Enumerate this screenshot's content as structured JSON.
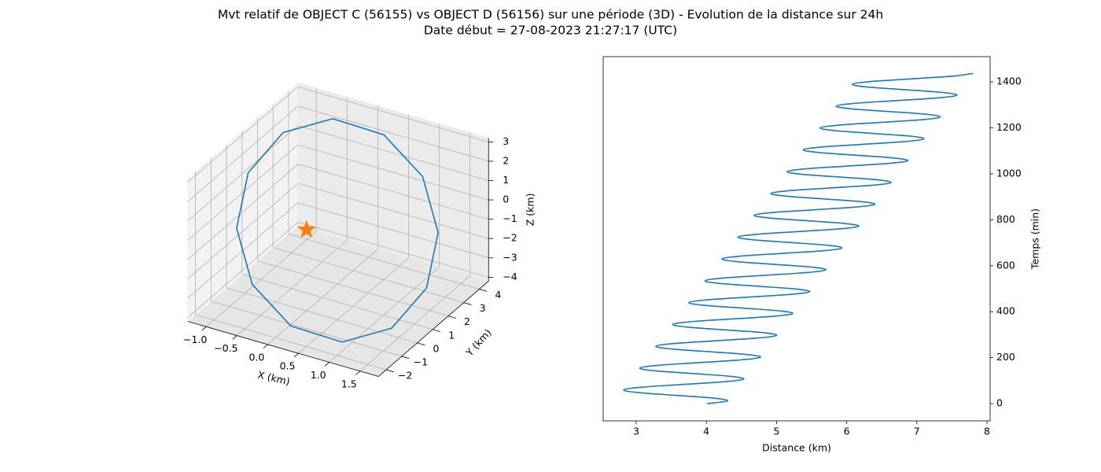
{
  "figure": {
    "title": "Mvt relatif de OBJECT C (56155) vs OBJECT D (56156) sur une période (3D) - Evolution de la distance sur 24h",
    "subtitle": "Date début = 27-08-2023 21:27:17 (UTC)"
  },
  "chart_data": [
    {
      "type": "line3d",
      "xlabel": "X (km)",
      "ylabel": "Y (km)",
      "zlabel": "Z (km)",
      "xlim": [
        -1.3,
        1.8
      ],
      "ylim": [
        -2.5,
        4.6
      ],
      "zlim": [
        -4.2,
        3.2
      ],
      "xticks": [
        {
          "value": -1,
          "label": "−1.0"
        },
        {
          "value": -0.5,
          "label": "−0.5"
        },
        {
          "value": 0,
          "label": "0.0"
        },
        0.5,
        {
          "value": 1,
          "label": "1.0"
        },
        1.5
      ],
      "yticks": [
        {
          "value": -2,
          "label": "−2"
        },
        {
          "value": -1,
          "label": "−1"
        },
        0,
        1,
        2,
        3,
        4
      ],
      "zticks": [
        {
          "value": -4,
          "label": "−4"
        },
        {
          "value": -3,
          "label": "−3"
        },
        {
          "value": -2,
          "label": "−2"
        },
        {
          "value": -1,
          "label": "−1"
        },
        0,
        1,
        2,
        3
      ],
      "grid": true,
      "series": [
        {
          "color": "#1f77b4",
          "x": [
            1.7,
            1.51,
            0.98,
            0.25,
            -0.48,
            -1.01,
            -1.2,
            -1.01,
            -0.48,
            0.25,
            0.98,
            1.51,
            1.7
          ],
          "y": [
            1,
            2.5,
            3.6,
            4,
            3.6,
            2.5,
            1,
            -0.5,
            -1.6,
            -2,
            -1.6,
            -0.5,
            1
          ],
          "z": [
            -2.15,
            -0.5,
            1.15,
            2.36,
            2.8,
            2.36,
            1.15,
            -0.5,
            -2.15,
            -3.36,
            -3.8,
            -3.36,
            -2.15
          ]
        }
      ],
      "marker": {
        "shape": "star",
        "color": "#ff7f0e",
        "x": 0,
        "y": 0,
        "z": 0
      }
    },
    {
      "type": "line",
      "xlabel": "Distance (km)",
      "ylabel": "Temps (min)",
      "xlim": [
        2.53,
        8.045
      ],
      "ylim": [
        -75,
        1510
      ],
      "xticks": [
        3,
        4,
        5,
        6,
        7,
        8
      ],
      "yticks": [
        0,
        200,
        400,
        600,
        800,
        1000,
        1200,
        1400
      ],
      "y_axis_side": "right",
      "smooth": true,
      "series": [
        {
          "color": "#1f77b4",
          "x": [
            4.01,
            4.3,
            4.12,
            3.59,
            3.05,
            2.82,
            3.06,
            3.64,
            4.25,
            4.53,
            4.35,
            3.83,
            3.28,
            3.05,
            3.29,
            3.87,
            4.48,
            4.77,
            4.58,
            4.06,
            3.51,
            3.28,
            3.52,
            4.11,
            4.71,
            5.0,
            4.82,
            4.29,
            3.75,
            3.52,
            3.76,
            4.34,
            4.95,
            5.23,
            5.05,
            4.53,
            3.98,
            3.75,
            3.99,
            4.57,
            5.18,
            5.47,
            5.28,
            4.76,
            4.21,
            3.98,
            4.22,
            4.81,
            5.41,
            5.7,
            5.52,
            4.99,
            4.45,
            4.22,
            4.46,
            5.04,
            5.65,
            5.93,
            5.75,
            5.23,
            4.68,
            4.45,
            4.69,
            5.27,
            5.88,
            6.17,
            5.98,
            5.46,
            4.91,
            4.68,
            4.92,
            5.51,
            6.11,
            6.4,
            6.22,
            5.69,
            5.15,
            4.92,
            5.16,
            5.74,
            6.35,
            6.63,
            6.45,
            5.93,
            5.38,
            5.15,
            5.39,
            5.97,
            6.58,
            6.87,
            6.68,
            6.16,
            5.61,
            5.38,
            5.62,
            6.21,
            6.81,
            7.1,
            6.92,
            6.39,
            5.85,
            5.62,
            5.86,
            6.44,
            7.05,
            7.33,
            7.15,
            6.63,
            6.08,
            5.85,
            6.09,
            6.67,
            7.28,
            7.57,
            7.38,
            6.86,
            6.31,
            6.08,
            6.32,
            6.91,
            7.51,
            7.8
          ],
          "values": [
            0,
            11.875,
            23.75,
            35.625,
            47.5,
            59.375,
            71.25,
            83.125,
            95,
            106.875,
            118.75,
            130.625,
            142.5,
            154.375,
            166.25,
            178.125,
            190,
            201.875,
            213.75,
            225.625,
            237.5,
            249.375,
            261.25,
            273.125,
            285,
            296.875,
            308.75,
            320.625,
            332.5,
            344.375,
            356.25,
            368.125,
            380,
            391.875,
            403.75,
            415.625,
            427.5,
            439.375,
            451.25,
            463.125,
            475,
            486.875,
            498.75,
            510.625,
            522.5,
            534.375,
            546.25,
            558.125,
            570,
            581.875,
            593.75,
            605.625,
            617.5,
            629.375,
            641.25,
            653.125,
            665,
            676.875,
            688.75,
            700.625,
            712.5,
            724.375,
            736.25,
            748.125,
            760,
            771.875,
            783.75,
            795.625,
            807.5,
            819.375,
            831.25,
            843.125,
            855,
            866.875,
            878.75,
            890.625,
            902.5,
            914.375,
            926.25,
            938.125,
            950,
            961.875,
            973.75,
            985.625,
            997.5,
            1009.375,
            1021.25,
            1033.125,
            1045,
            1056.875,
            1068.75,
            1080.625,
            1092.5,
            1104.375,
            1116.25,
            1128.125,
            1140,
            1151.875,
            1163.75,
            1175.625,
            1187.5,
            1199.375,
            1211.25,
            1223.125,
            1235,
            1246.875,
            1258.75,
            1270.625,
            1282.5,
            1294.375,
            1306.25,
            1318.125,
            1330,
            1341.875,
            1353.75,
            1365.625,
            1377.5,
            1389.375,
            1401.25,
            1413.125,
            1425,
            1436.875
          ]
        }
      ]
    }
  ]
}
